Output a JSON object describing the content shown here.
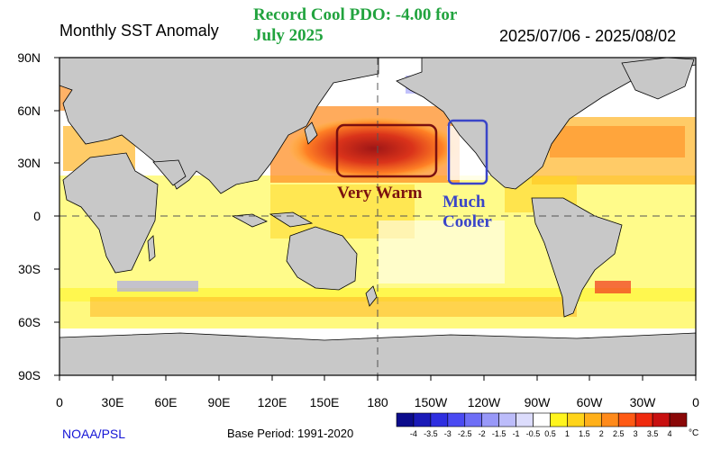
{
  "title": "Monthly SST Anomaly",
  "date_range": "2025/07/06 - 2025/08/02",
  "headline": [
    "Record Cool PDO: -4.00 for",
    "July 2025"
  ],
  "annotations": {
    "very_warm": "Very Warm",
    "much_cooler": [
      "Much",
      "Cooler"
    ]
  },
  "lat_labels": [
    "90N",
    "60N",
    "30N",
    "0",
    "30S",
    "60S",
    "90S"
  ],
  "lon_labels": [
    "0",
    "30E",
    "60E",
    "90E",
    "120E",
    "150E",
    "180",
    "150W",
    "120W",
    "90W",
    "60W",
    "30W",
    "0"
  ],
  "footer": {
    "agency": "NOAA/PSL",
    "base_period": "Base Period: 1991-2020"
  },
  "colorbar": {
    "ticks": [
      "-4",
      "-3.5",
      "-3",
      "-2.5",
      "-2",
      "-1.5",
      "-1",
      "-0.5",
      "0.5",
      "1",
      "1.5",
      "2",
      "2.5",
      "3",
      "3.5",
      "4"
    ],
    "unit": "°C",
    "colors": [
      "#0c0c8c",
      "#1a1ab8",
      "#2e2ee0",
      "#4a4af2",
      "#6e6ef6",
      "#9898f8",
      "#bcbcfa",
      "#dcdcfc",
      "#ffffff",
      "#fff51e",
      "#ffd41a",
      "#ffb01a",
      "#ff8a1a",
      "#ff5a14",
      "#ef2a0e",
      "#c81010",
      "#8a0808"
    ]
  },
  "colors": {
    "land": "#c8c8c8",
    "ocean": "#ffffff",
    "warm_box": "#7a1010",
    "cool_box": "#3a45c8",
    "headline": "#21a33e"
  }
}
